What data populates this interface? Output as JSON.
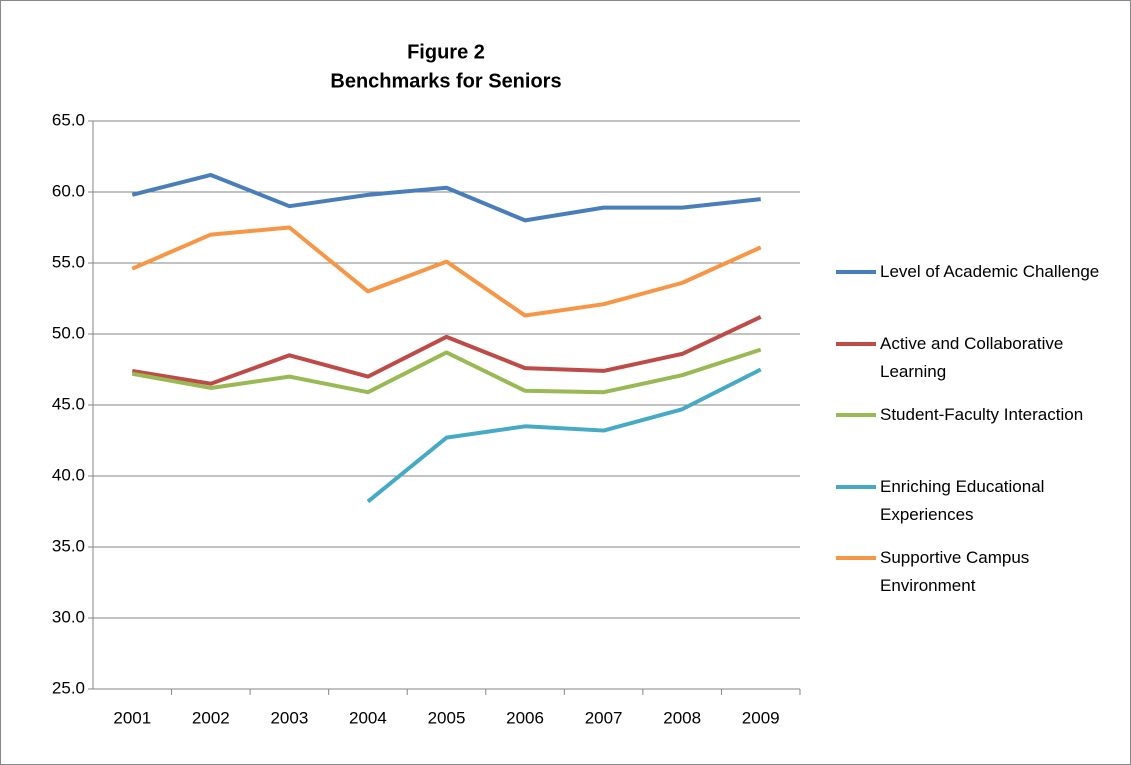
{
  "chart_data": {
    "type": "line",
    "title": "Figure 2",
    "subtitle": "Benchmarks for Seniors",
    "categories": [
      "2001",
      "2002",
      "2003",
      "2004",
      "2005",
      "2006",
      "2007",
      "2008",
      "2009"
    ],
    "series": [
      {
        "name": "Level of Academic Challenge",
        "color": "#4a7ebb",
        "values": [
          59.8,
          61.2,
          59.0,
          59.8,
          60.3,
          58.0,
          58.9,
          58.9,
          59.5
        ]
      },
      {
        "name": "Active and Collaborative Learning",
        "color": "#be4b48",
        "values": [
          47.4,
          46.5,
          48.5,
          47.0,
          49.8,
          47.6,
          47.4,
          48.6,
          51.2
        ]
      },
      {
        "name": "Student-Faculty Interaction",
        "color": "#98b954",
        "values": [
          47.2,
          46.2,
          47.0,
          45.9,
          48.7,
          46.0,
          45.9,
          47.1,
          48.9
        ]
      },
      {
        "name": "Enriching Educational Experiences",
        "color": "#46aac5",
        "values": [
          null,
          null,
          null,
          38.2,
          42.7,
          43.5,
          43.2,
          44.7,
          47.5
        ]
      },
      {
        "name": "Supportive Campus Environment",
        "color": "#f79646",
        "values": [
          54.6,
          57.0,
          57.5,
          53.0,
          55.1,
          51.3,
          52.1,
          53.6,
          56.1
        ]
      }
    ],
    "ylim": [
      25,
      65
    ],
    "yticks": [
      {
        "value": 25,
        "label": "25.0"
      },
      {
        "value": 30,
        "label": "30.0"
      },
      {
        "value": 35,
        "label": "35.0"
      },
      {
        "value": 40,
        "label": "40.0"
      },
      {
        "value": 45,
        "label": "45.0"
      },
      {
        "value": 50,
        "label": "50.0"
      },
      {
        "value": 55,
        "label": "55.0"
      },
      {
        "value": 60,
        "label": "60.0"
      },
      {
        "value": 65,
        "label": "65.0"
      }
    ],
    "grid": true,
    "legend": "right"
  }
}
